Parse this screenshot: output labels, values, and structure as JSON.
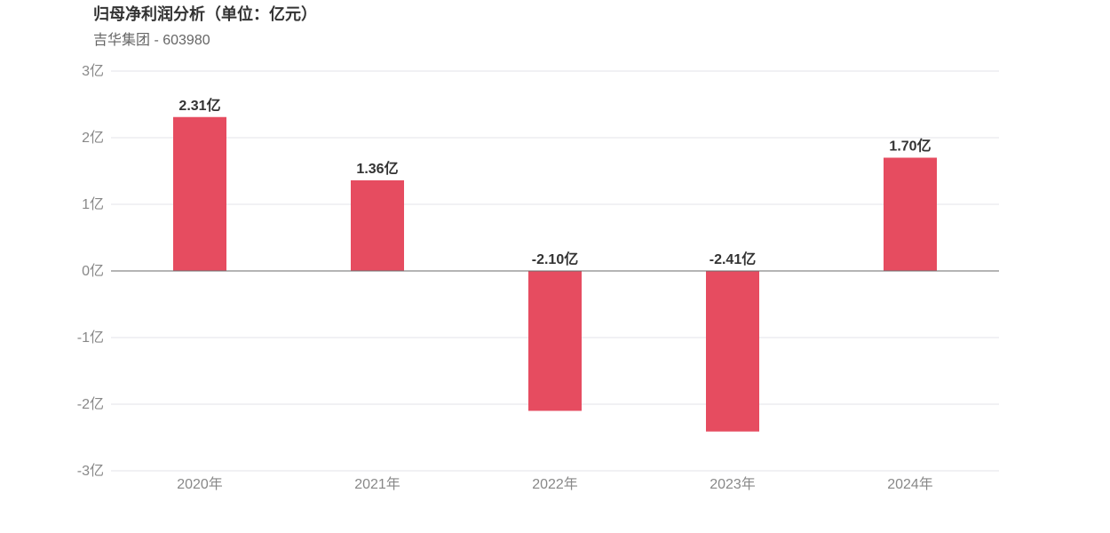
{
  "header": {
    "title": "归母净利润分析（单位：亿元）",
    "subtitle": "吉华集团 - 603980"
  },
  "colors": {
    "bar": "#e64c60",
    "grid": "#e3e3ea",
    "zero_axis": "#6b6b6b"
  },
  "chart_data": {
    "type": "bar",
    "title": "归母净利润分析（单位：亿元）",
    "categories": [
      "2020年",
      "2021年",
      "2022年",
      "2023年",
      "2024年"
    ],
    "values": [
      2.31,
      1.36,
      -2.1,
      -2.41,
      1.7
    ],
    "data_labels": [
      "2.31亿",
      "1.36亿",
      "-2.10亿",
      "-2.41亿",
      "1.70亿"
    ],
    "y_ticks": [
      3,
      2,
      1,
      0,
      -1,
      -2,
      -3
    ],
    "y_tick_labels": [
      "3亿",
      "2亿",
      "1亿",
      "0亿",
      "-1亿",
      "-2亿",
      "-3亿"
    ],
    "ylim": [
      -3,
      3
    ],
    "xlabel": "",
    "ylabel": "",
    "grid": true,
    "legend": false
  }
}
